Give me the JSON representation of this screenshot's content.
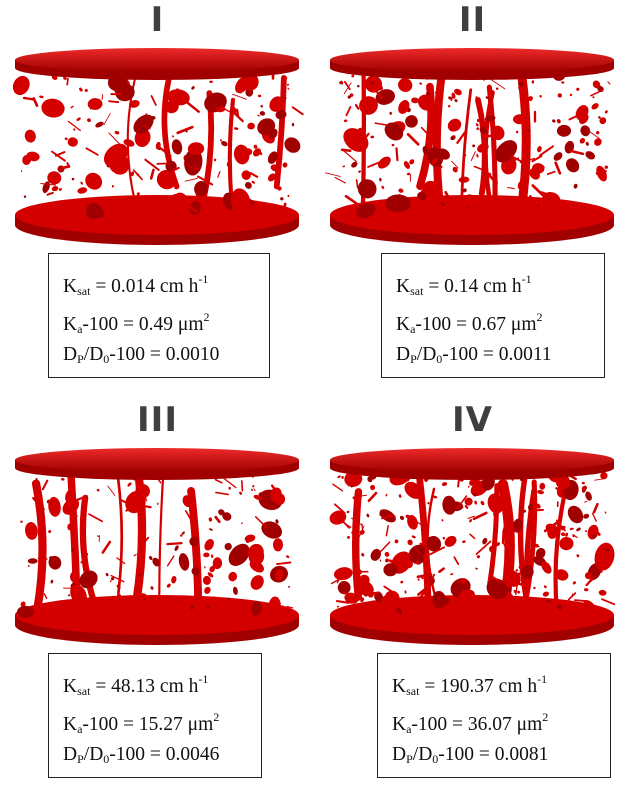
{
  "panels": [
    {
      "label": "I",
      "ksat": {
        "sym": "K",
        "sub": "sat",
        "value": "= 0.014 cm h",
        "sup": "-1"
      },
      "ka": {
        "sym": "K",
        "sub": "a",
        "value": "-100 = 0.49 μm",
        "sup": "2"
      },
      "dp": {
        "sym": "D",
        "sub1": "P",
        "mid": "/D",
        "sub2": "0",
        "value": "-100 = 0.0010"
      }
    },
    {
      "label": "II",
      "ksat": {
        "sym": "K",
        "sub": "sat",
        "value": "= 0.14 cm h",
        "sup": "-1"
      },
      "ka": {
        "sym": "K",
        "sub": "a",
        "value": "-100 = 0.67 μm",
        "sup": "2"
      },
      "dp": {
        "sym": "D",
        "sub1": "P",
        "mid": "/D",
        "sub2": "0",
        "value": "-100 = 0.0011"
      }
    },
    {
      "label": "III",
      "ksat": {
        "sym": "K",
        "sub": "sat",
        "value": "= 48.13 cm h",
        "sup": "-1"
      },
      "ka": {
        "sym": "K",
        "sub": "a",
        "value": "-100 = 15.27 μm",
        "sup": "2"
      },
      "dp": {
        "sym": "D",
        "sub1": "P",
        "mid": "/D",
        "sub2": "0",
        "value": "-100 = 0.0046"
      }
    },
    {
      "label": "IV",
      "ksat": {
        "sym": "K",
        "sub": "sat",
        "value": "= 190.37 cm h",
        "sup": "-1"
      },
      "ka": {
        "sym": "K",
        "sub": "a",
        "value": "-100 = 36.07 μm",
        "sup": "2"
      },
      "dp": {
        "sym": "D",
        "sub1": "P",
        "mid": "/D",
        "sub2": "0",
        "value": "-100 = 0.0081"
      }
    }
  ],
  "colors": {
    "pore": "#d40000",
    "pore_dark": "#a00000",
    "pore_light": "#ee2a2a",
    "label": "#3f3f3f"
  }
}
